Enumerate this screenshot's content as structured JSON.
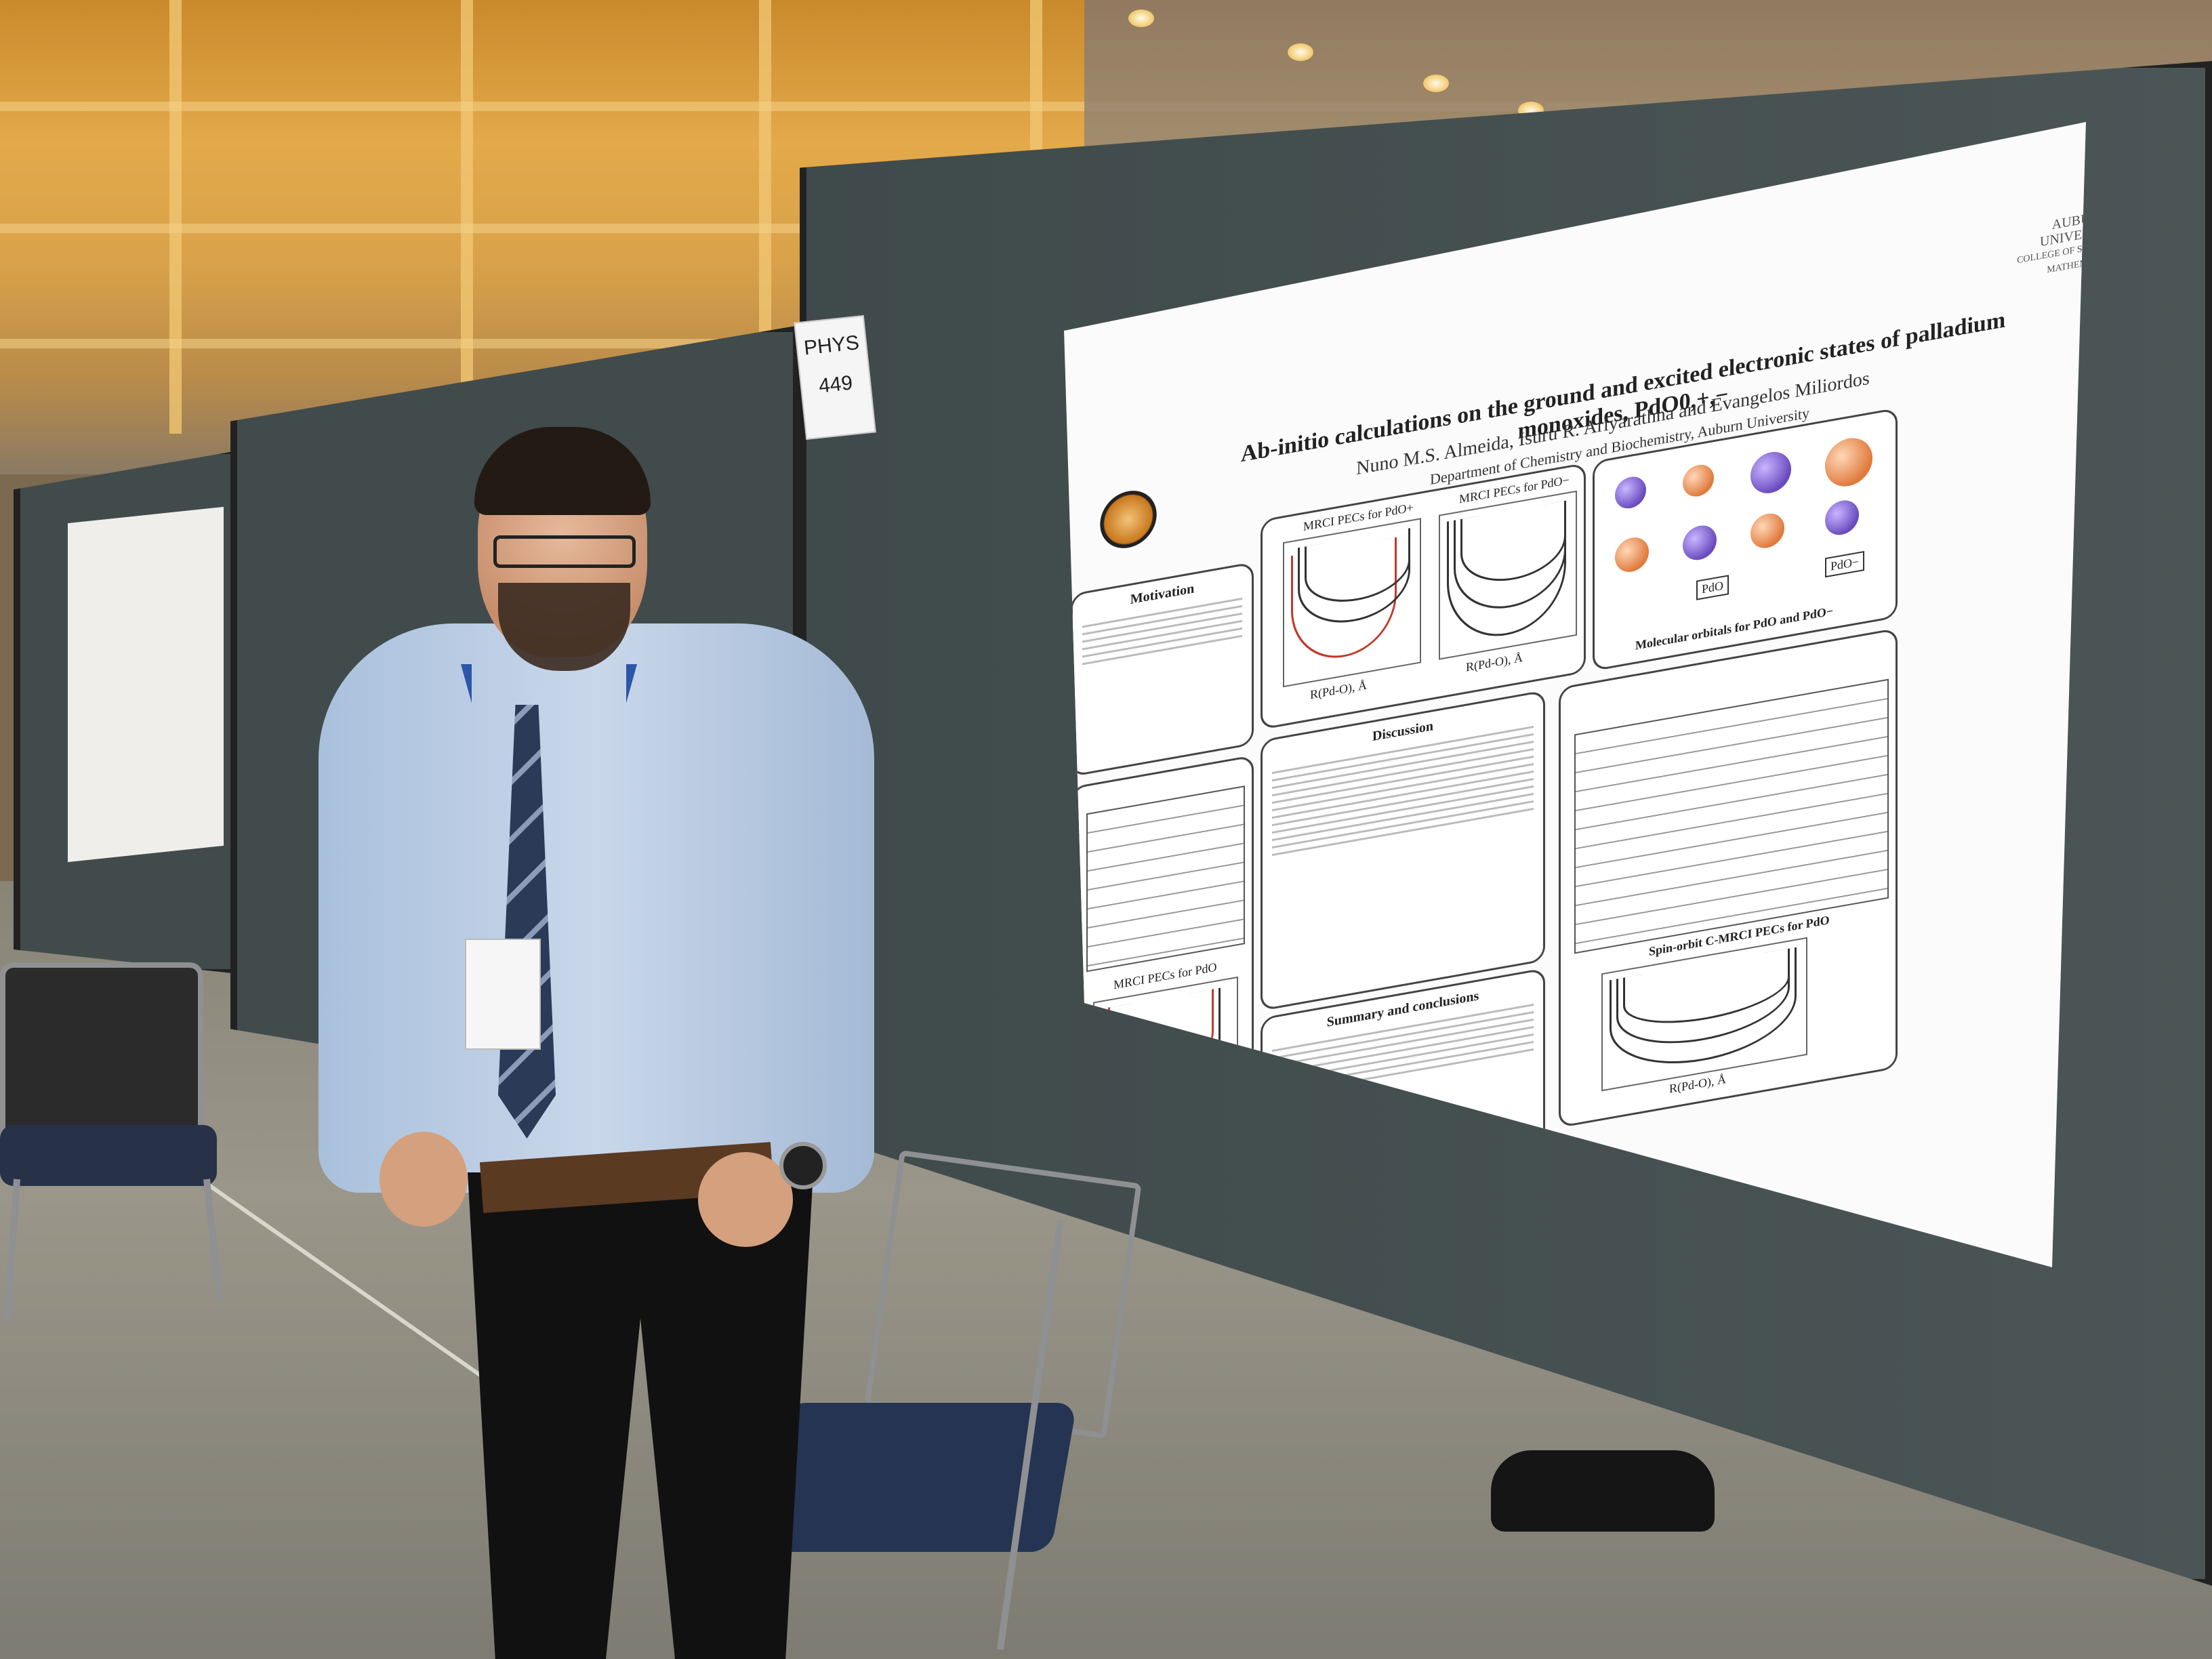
{
  "scene": {
    "description_tag": "photo",
    "colors": {
      "wall": "#e3a94a",
      "board": "#414b4c",
      "poster_bg": "#fbfbfb",
      "shirt": "#c9d7ea",
      "lanyard": "#2c56a8"
    }
  },
  "poster_tag": {
    "line1": "PHYS",
    "line2": "449"
  },
  "poster": {
    "title": "Ab-initio calculations on the ground and excited electronic states of palladium monoxides, PdO0,+,−",
    "authors": "Nuno M.S. Almeida, Isuru R. Ariyarathna and Evangelos Miliordos",
    "department": "Department of Chemistry and Biochemistry, Auburn University",
    "university": "AUBURN UNIVERSITY",
    "college": "COLLEGE OF SCIENCES AND MATHEMATICS",
    "sections": {
      "motivation": "Motivation",
      "discussion": "Discussion",
      "summary": "Summary and conclusions",
      "chart1_title": "MRCI PECs for PdO+",
      "chart2_title": "MRCI PECs for PdO−",
      "chart3_title": "MRCI PECs for PdO",
      "chart4_title": "Spin-orbit C-MRCI PECs for PdO",
      "orbitals_caption": "Molecular orbitals for PdO and PdO−",
      "chart2_xlabel": "R(Pd-O), Å",
      "chart1_xlabel": "R(Pd-O), Å",
      "chart4_xlabel": "R(Pd-O), Å",
      "pdo_label": "PdO",
      "pdo_minus_label": "PdO−"
    }
  }
}
